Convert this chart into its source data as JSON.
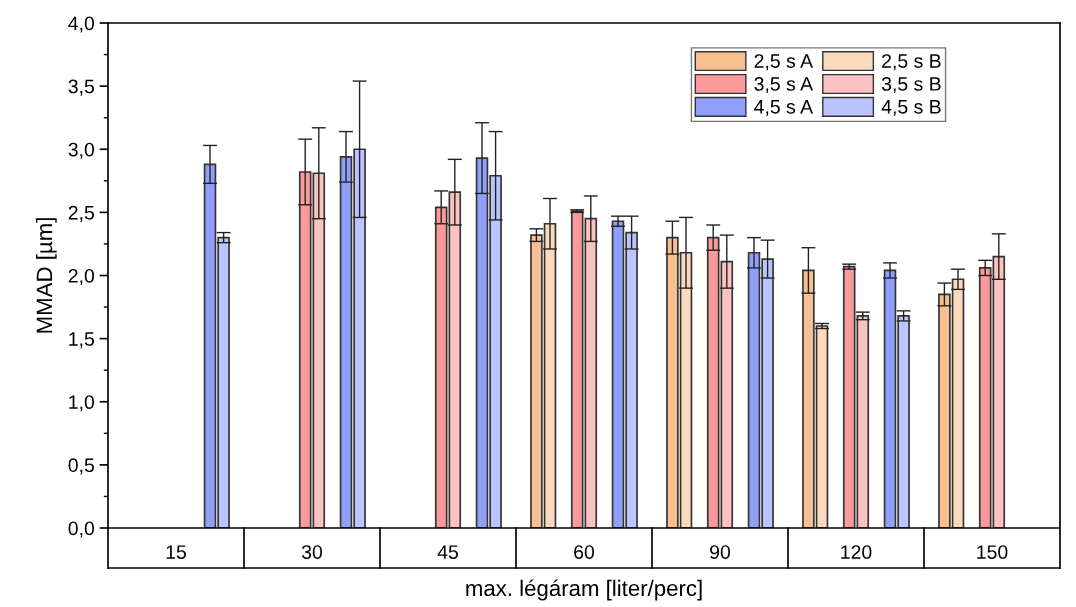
{
  "chart_data": {
    "type": "bar",
    "xlabel": "max. légáram [liter/perc]",
    "ylabel": "MMAD [µm]",
    "categories": [
      "15",
      "30",
      "45",
      "60",
      "90",
      "120",
      "150"
    ],
    "ylim": [
      0,
      4.0
    ],
    "yticks": [
      {
        "value": 0,
        "label": "0,0"
      },
      {
        "value": 0.5,
        "label": "0,5"
      },
      {
        "value": 1.0,
        "label": "1,0"
      },
      {
        "value": 1.5,
        "label": "1,5"
      },
      {
        "value": 2.0,
        "label": "2,0"
      },
      {
        "value": 2.5,
        "label": "2,5"
      },
      {
        "value": 3.0,
        "label": "3,0"
      },
      {
        "value": 3.5,
        "label": "3,5"
      },
      {
        "value": 4.0,
        "label": "4,0"
      }
    ],
    "grid": false,
    "legend": "top right",
    "series": [
      {
        "name": "2,5 s A",
        "color": "#f8c090",
        "values": [
          null,
          null,
          null,
          2.32,
          2.3,
          2.04,
          1.85
        ],
        "errors": [
          null,
          null,
          null,
          0.05,
          0.13,
          0.18,
          0.09
        ]
      },
      {
        "name": "2,5 s B",
        "color": "#fadabc",
        "values": [
          null,
          null,
          null,
          2.41,
          2.18,
          1.6,
          1.97
        ],
        "errors": [
          null,
          null,
          null,
          0.2,
          0.28,
          0.02,
          0.08
        ]
      },
      {
        "name": "3,5 s A",
        "color": "#fb9a9a",
        "values": [
          null,
          2.82,
          2.54,
          2.51,
          2.3,
          2.07,
          2.06
        ],
        "errors": [
          null,
          0.26,
          0.13,
          0.01,
          0.1,
          0.02,
          0.06
        ]
      },
      {
        "name": "3,5 s B",
        "color": "#fcc2c2",
        "values": [
          null,
          2.81,
          2.66,
          2.45,
          2.11,
          1.68,
          2.15
        ],
        "errors": [
          null,
          0.36,
          0.26,
          0.18,
          0.21,
          0.03,
          0.18
        ]
      },
      {
        "name": "4,5 s A",
        "color": "#919ffc",
        "values": [
          2.88,
          2.94,
          2.93,
          2.43,
          2.18,
          2.04,
          null
        ],
        "errors": [
          0.15,
          0.2,
          0.28,
          0.04,
          0.12,
          0.06,
          null
        ]
      },
      {
        "name": "4,5 s B",
        "color": "#bcc4fd",
        "values": [
          2.3,
          3.0,
          2.79,
          2.34,
          2.13,
          1.68,
          null
        ],
        "errors": [
          0.04,
          0.54,
          0.35,
          0.13,
          0.15,
          0.04,
          null
        ]
      }
    ]
  }
}
